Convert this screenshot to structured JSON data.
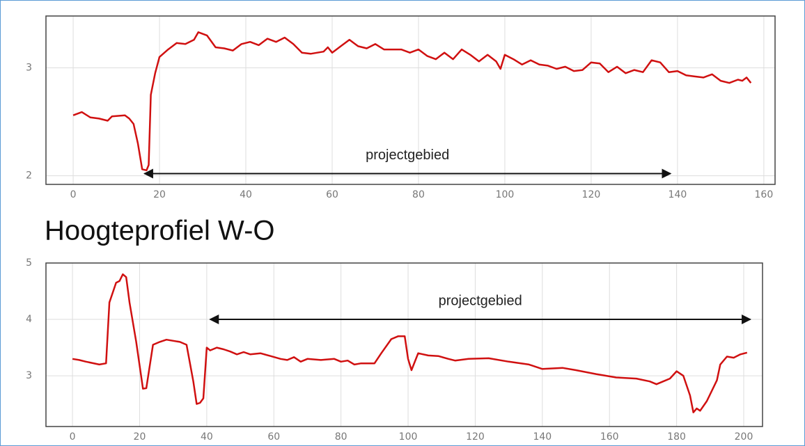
{
  "chart_data": [
    {
      "type": "line",
      "color": "#d01010",
      "grid": true,
      "xlim": [
        -6.3,
        162.6
      ],
      "xticks": [
        0,
        20,
        40,
        60,
        80,
        100,
        120,
        140,
        160
      ],
      "ylim": [
        1.92,
        3.48
      ],
      "yticks": [
        2,
        3
      ],
      "x": [
        0,
        2,
        4,
        6,
        8,
        9,
        12,
        13,
        14,
        15,
        16,
        17,
        17.5,
        18,
        19,
        20,
        22,
        24,
        26,
        28,
        29,
        31,
        33,
        35,
        37,
        39,
        41,
        43,
        45,
        47,
        49,
        51,
        53,
        55,
        58,
        59,
        60,
        62,
        64,
        66,
        68,
        70,
        72,
        76,
        78,
        80,
        82,
        84,
        86,
        88,
        90,
        92,
        94,
        96,
        98,
        99,
        100,
        102,
        104,
        106,
        108,
        110,
        112,
        114,
        116,
        118,
        120,
        122,
        124,
        126,
        128,
        130,
        132,
        134,
        136,
        138,
        140,
        142,
        144,
        146,
        148,
        150,
        152,
        154,
        155,
        156,
        157
      ],
      "values": [
        2.56,
        2.59,
        2.54,
        2.53,
        2.51,
        2.55,
        2.56,
        2.53,
        2.48,
        2.3,
        2.06,
        2.05,
        2.1,
        2.75,
        2.95,
        3.1,
        3.17,
        3.23,
        3.22,
        3.26,
        3.33,
        3.3,
        3.19,
        3.18,
        3.16,
        3.22,
        3.24,
        3.21,
        3.27,
        3.24,
        3.28,
        3.22,
        3.14,
        3.13,
        3.15,
        3.19,
        3.14,
        3.2,
        3.26,
        3.2,
        3.18,
        3.22,
        3.17,
        3.17,
        3.14,
        3.17,
        3.11,
        3.08,
        3.14,
        3.08,
        3.17,
        3.12,
        3.06,
        3.12,
        3.06,
        2.99,
        3.12,
        3.08,
        3.03,
        3.07,
        3.03,
        3.02,
        2.99,
        3.01,
        2.97,
        2.98,
        3.05,
        3.04,
        2.96,
        3.01,
        2.95,
        2.98,
        2.96,
        3.07,
        3.05,
        2.96,
        2.97,
        2.93,
        2.92,
        2.91,
        2.94,
        2.88,
        2.86,
        2.89,
        2.88,
        2.91,
        2.86
      ],
      "annotation": {
        "text": "projectgebied",
        "x": [
          16.5,
          138.4
        ],
        "y": 2.02
      }
    },
    {
      "type": "line",
      "color": "#d01010",
      "grid": true,
      "title": "Hoogteprofiel W-O",
      "xlim": [
        -7.9,
        205.6
      ],
      "xticks": [
        0,
        20,
        40,
        60,
        80,
        100,
        120,
        140,
        160,
        180,
        200
      ],
      "ylim": [
        2.1,
        5
      ],
      "yticks": [
        3,
        4,
        5
      ],
      "x": [
        0,
        2,
        4,
        8,
        10,
        11,
        13,
        14,
        15,
        16,
        17,
        19,
        21,
        22,
        24,
        26,
        28,
        32,
        34,
        36,
        37,
        38,
        39,
        40,
        41,
        43,
        45,
        47,
        49,
        51,
        53,
        56,
        59,
        62,
        64,
        66,
        68,
        70,
        74,
        78,
        80,
        82,
        84,
        86,
        90,
        92,
        95,
        97,
        99,
        100,
        101,
        103,
        106,
        109,
        112,
        114,
        118,
        124,
        130,
        136,
        140,
        146,
        150,
        156,
        162,
        168,
        172,
        174,
        176,
        178,
        180,
        182,
        184,
        185,
        186,
        187,
        189,
        192,
        193,
        195,
        197,
        199,
        201
      ],
      "values": [
        3.3,
        3.28,
        3.25,
        3.2,
        3.22,
        4.3,
        4.65,
        4.68,
        4.8,
        4.75,
        4.3,
        3.6,
        2.77,
        2.78,
        3.55,
        3.6,
        3.64,
        3.6,
        3.55,
        2.9,
        2.5,
        2.52,
        2.6,
        3.5,
        3.45,
        3.5,
        3.47,
        3.43,
        3.38,
        3.42,
        3.38,
        3.4,
        3.35,
        3.3,
        3.28,
        3.33,
        3.25,
        3.3,
        3.28,
        3.3,
        3.25,
        3.27,
        3.2,
        3.22,
        3.22,
        3.4,
        3.65,
        3.7,
        3.7,
        3.3,
        3.1,
        3.4,
        3.36,
        3.35,
        3.3,
        3.27,
        3.3,
        3.31,
        3.25,
        3.2,
        3.12,
        3.14,
        3.1,
        3.03,
        2.97,
        2.95,
        2.9,
        2.85,
        2.9,
        2.95,
        3.08,
        3.0,
        2.65,
        2.35,
        2.42,
        2.38,
        2.55,
        2.92,
        3.2,
        3.34,
        3.32,
        3.38,
        3.41
      ],
      "annotation": {
        "text": "projectgebied",
        "x": [
          41,
          202
        ],
        "y": 4.0
      }
    }
  ]
}
